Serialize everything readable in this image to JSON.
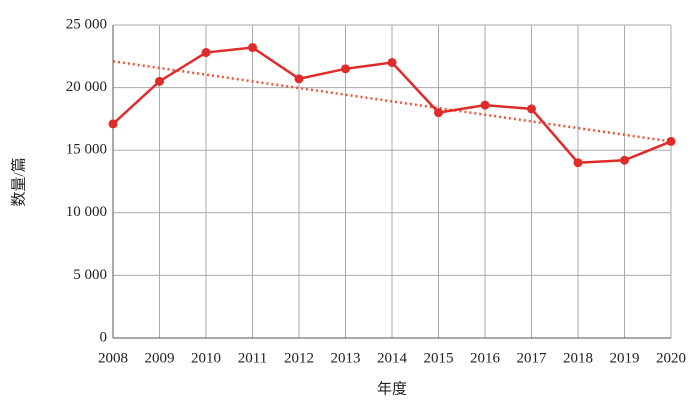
{
  "chart_data": {
    "type": "line",
    "xlabel": "年度",
    "ylabel": "数量/篇",
    "x": [
      2008,
      2009,
      2010,
      2011,
      2012,
      2013,
      2014,
      2015,
      2016,
      2017,
      2018,
      2019,
      2020
    ],
    "series": [
      {
        "color": "#e02b2b",
        "values": [
          17100,
          20500,
          22800,
          23200,
          20700,
          21500,
          22000,
          18000,
          18600,
          18300,
          14000,
          14200,
          15700
        ]
      }
    ],
    "trend": {
      "color": "#e8553a",
      "style": "dotted",
      "x": [
        2008,
        2020
      ],
      "values": [
        22100,
        15700
      ]
    },
    "xlim": [
      2008,
      2020
    ],
    "xticks": [
      2008,
      2009,
      2010,
      2011,
      2012,
      2013,
      2014,
      2015,
      2016,
      2017,
      2018,
      2019,
      2020
    ],
    "ylim": [
      0,
      25000
    ],
    "yticks": [
      0,
      {
        "value": 5000,
        "label": "5 000"
      },
      {
        "value": 10000,
        "label": "10 000"
      },
      {
        "value": 15000,
        "label": "15 000"
      },
      {
        "value": 20000,
        "label": "20 000"
      },
      {
        "value": 25000,
        "label": "25 000"
      }
    ],
    "grid": true
  }
}
